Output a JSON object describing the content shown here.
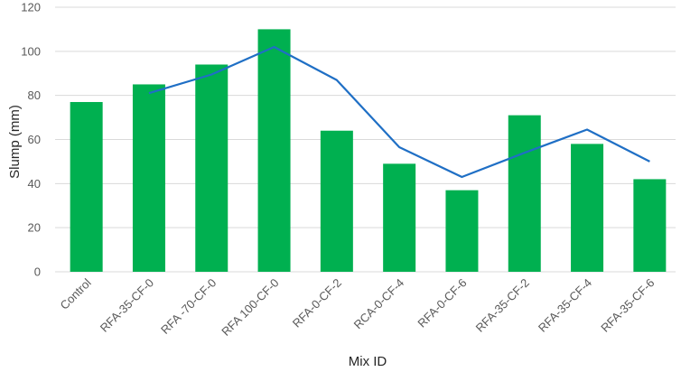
{
  "chart_data": {
    "type": "bar",
    "categories": [
      "Control",
      "RFA-35-CF-0",
      "RFA -70-CF-0",
      "RFA 100-CF-0",
      "RFA-0-CF-2",
      "RCA-0-CF-4",
      "RFA-0-CF-6",
      "RFA-35-CF-2",
      "RFA-35-CF-4",
      "RFA-35-CF-6"
    ],
    "values": [
      77,
      85,
      94,
      110,
      64,
      49,
      37,
      71,
      58,
      42
    ],
    "trendline": {
      "type": "moving-average",
      "period": 2,
      "values": [
        null,
        81,
        89.5,
        102,
        87,
        56.5,
        43,
        54,
        64.5,
        50
      ]
    },
    "title": "",
    "xlabel": "Mix ID",
    "ylabel": "Slump (mm)",
    "ylim": [
      0,
      120
    ],
    "yticks": [
      0,
      20,
      40,
      60,
      80,
      100,
      120
    ],
    "grid": true,
    "legend": "none",
    "colors": {
      "bar": "#00b050",
      "line": "#1f6fc5",
      "grid": "#d9d9d9",
      "axis_text": "#595959"
    }
  }
}
